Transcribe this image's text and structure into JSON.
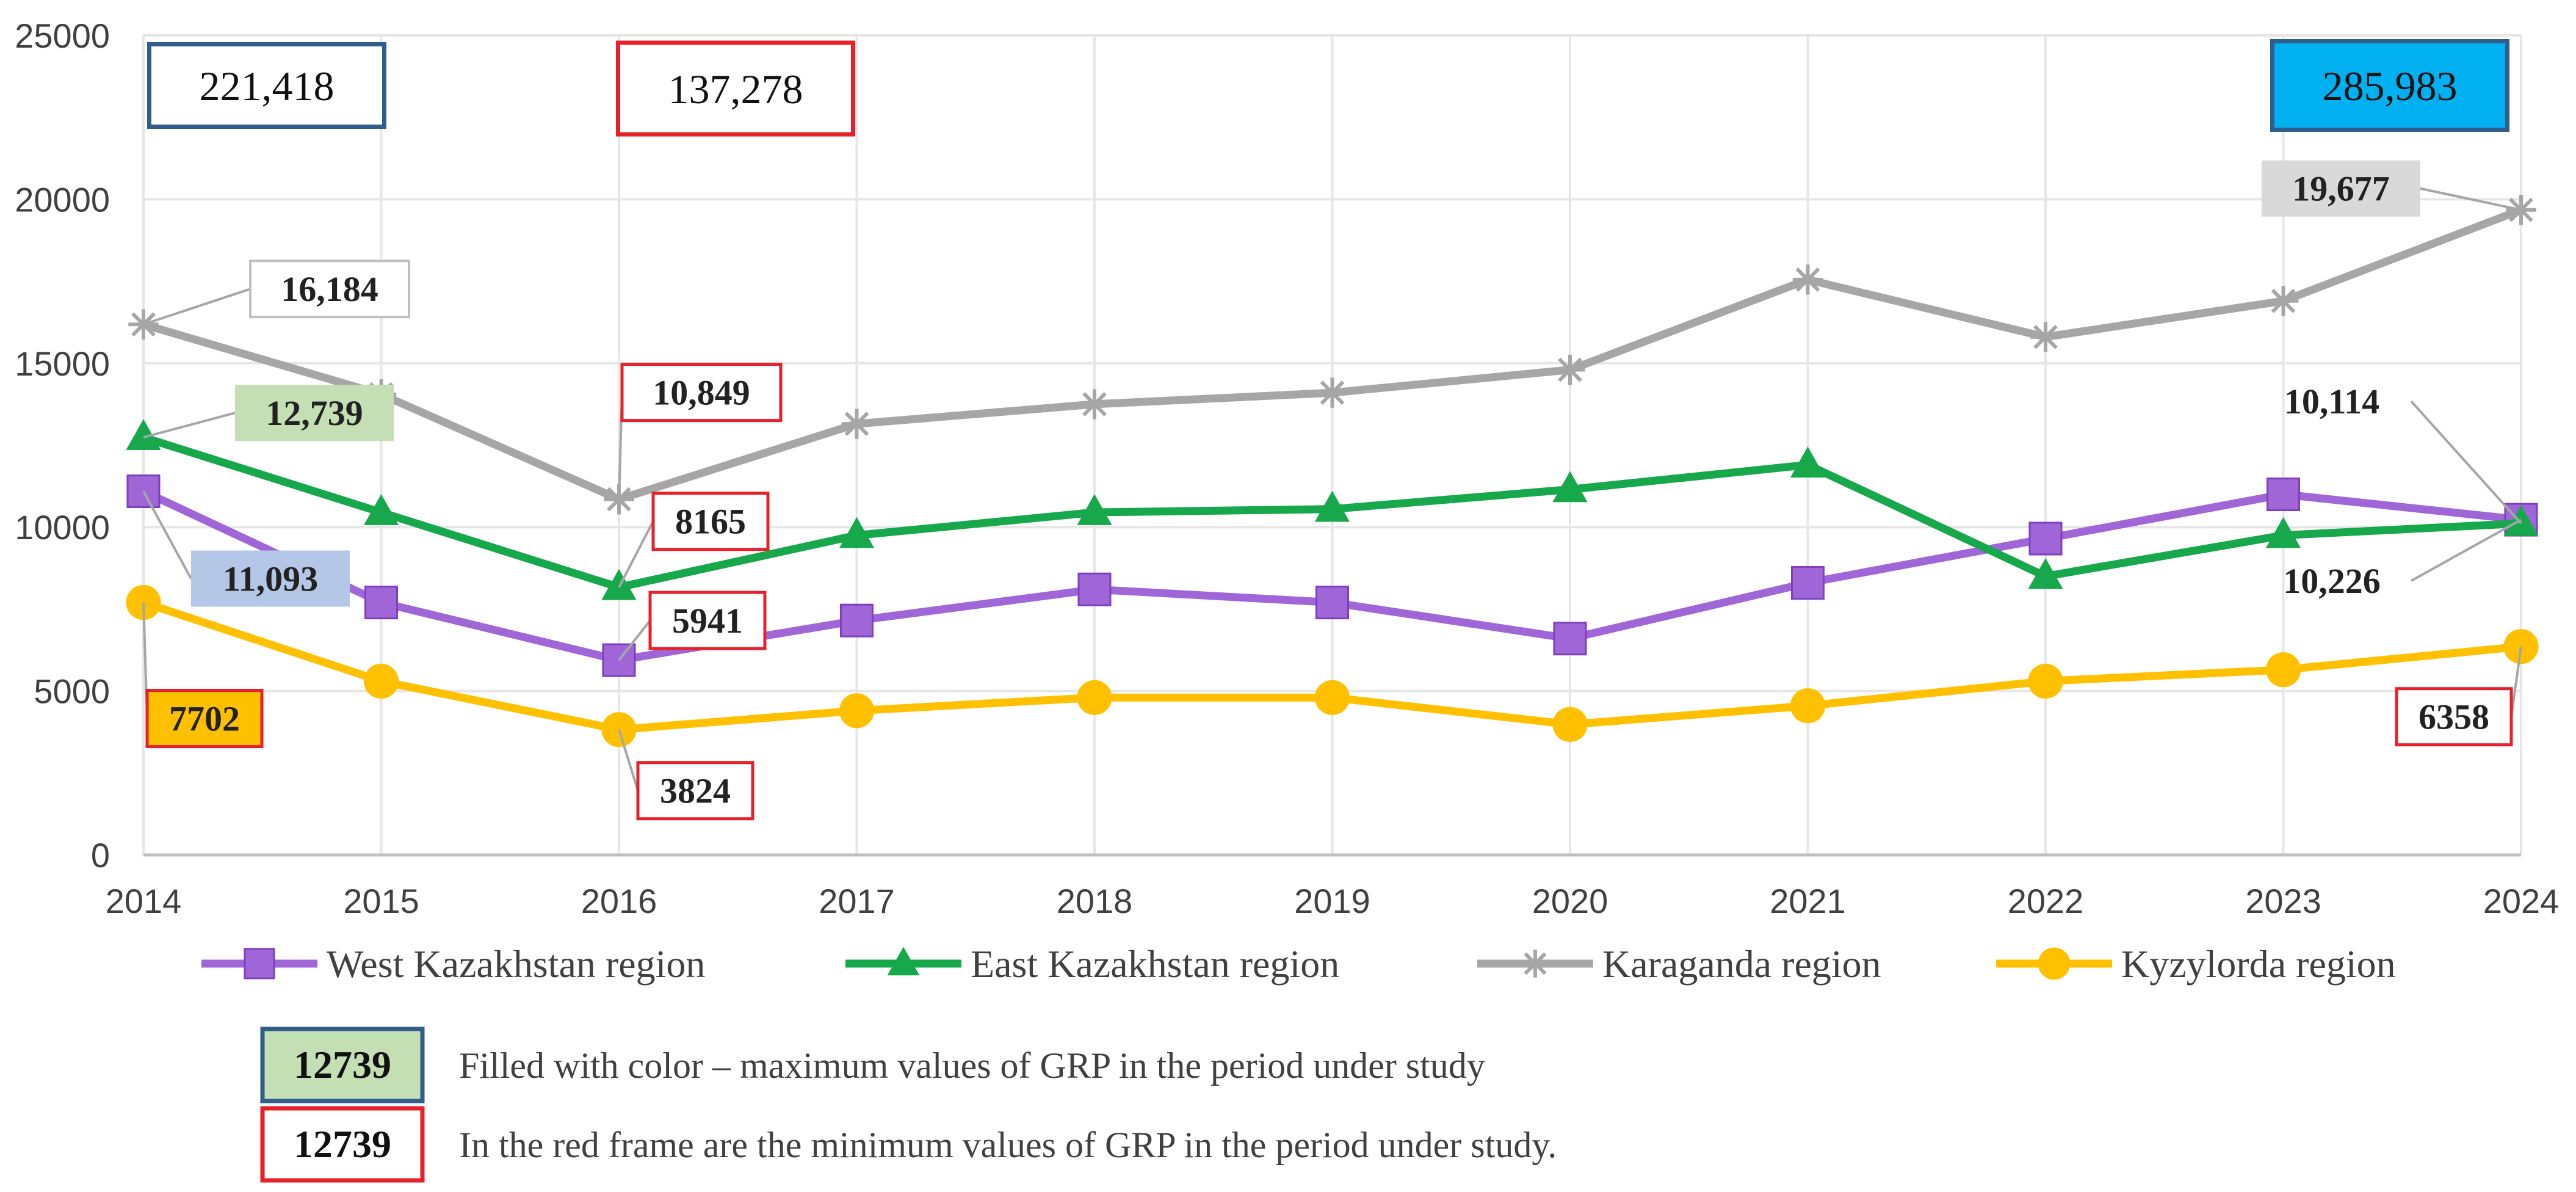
{
  "chart_data": {
    "type": "line",
    "x": [
      2014,
      2015,
      2016,
      2017,
      2018,
      2019,
      2020,
      2021,
      2022,
      2023,
      2024
    ],
    "y_ticks": [
      "0",
      "5000",
      "10000",
      "15000",
      "20000",
      "25000"
    ],
    "ylim": [
      0,
      25000
    ],
    "grid": true,
    "legend_position": "bottom",
    "series": [
      {
        "name": "West Kazakhstan region",
        "color": "#A066D8",
        "marker": "square",
        "values": [
          11093,
          7700,
          5941,
          7150,
          8100,
          7700,
          6600,
          8300,
          9650,
          11000,
          10226
        ]
      },
      {
        "name": "East Kazakhstan region",
        "color": "#16A84A",
        "marker": "triangle",
        "values": [
          12739,
          10450,
          8165,
          9750,
          10450,
          10550,
          11150,
          11900,
          8500,
          9750,
          10114
        ]
      },
      {
        "name": "Karaganda region",
        "color": "#A6A6A6",
        "marker": "cross",
        "values": [
          16184,
          14050,
          10849,
          13150,
          13750,
          14100,
          14800,
          17550,
          15800,
          16900,
          19677
        ]
      },
      {
        "name": "Kyzylorda region",
        "color": "#FFC000",
        "marker": "circle",
        "values": [
          7702,
          5300,
          3824,
          4400,
          4800,
          4800,
          3980,
          4550,
          5300,
          5650,
          6358
        ]
      }
    ],
    "data_labels": [
      {
        "series": 2,
        "index": 0,
        "text": "16,184",
        "kind": "start"
      },
      {
        "series": 1,
        "index": 0,
        "text": "12,739",
        "kind": "max"
      },
      {
        "series": 0,
        "index": 0,
        "text": "11,093",
        "kind": "max"
      },
      {
        "series": 3,
        "index": 0,
        "text": "7702",
        "kind": "max"
      },
      {
        "series": 2,
        "index": 2,
        "text": "10,849",
        "kind": "min"
      },
      {
        "series": 1,
        "index": 2,
        "text": "8165",
        "kind": "min"
      },
      {
        "series": 0,
        "index": 2,
        "text": "5941",
        "kind": "min"
      },
      {
        "series": 3,
        "index": 2,
        "text": "3824",
        "kind": "min"
      },
      {
        "series": 2,
        "index": 10,
        "text": "19,677",
        "kind": "max"
      },
      {
        "series": 1,
        "index": 10,
        "text": "10,114",
        "kind": "plain"
      },
      {
        "series": 0,
        "index": 10,
        "text": "10,226",
        "kind": "plain"
      },
      {
        "series": 3,
        "index": 10,
        "text": "6358",
        "kind": "min"
      }
    ],
    "totals": [
      {
        "text": "221,418",
        "style": "blue-frame"
      },
      {
        "text": "137,278",
        "style": "red-frame"
      },
      {
        "text": "285,983",
        "style": "cyan-fill"
      }
    ]
  },
  "notes": [
    {
      "sample": "12739",
      "text": "Filled with color – maximum values of GRP in the period under study",
      "style": "filled"
    },
    {
      "sample": "12739",
      "text": "In the red frame are the minimum values of GRP in the period under study.",
      "style": "red-frame"
    }
  ],
  "colors": {
    "red_frame": "#E8202A",
    "blue_frame": "#2F5D8C",
    "cyan_fill": "#00B0F0",
    "green_fill": "#C5DFB4",
    "blue_fill": "#B4C7E7",
    "orange_fill": "#FFC000",
    "gray_fill": "#D9D9D9",
    "grid": "#E6E6E6",
    "axis_text": "#404040"
  }
}
